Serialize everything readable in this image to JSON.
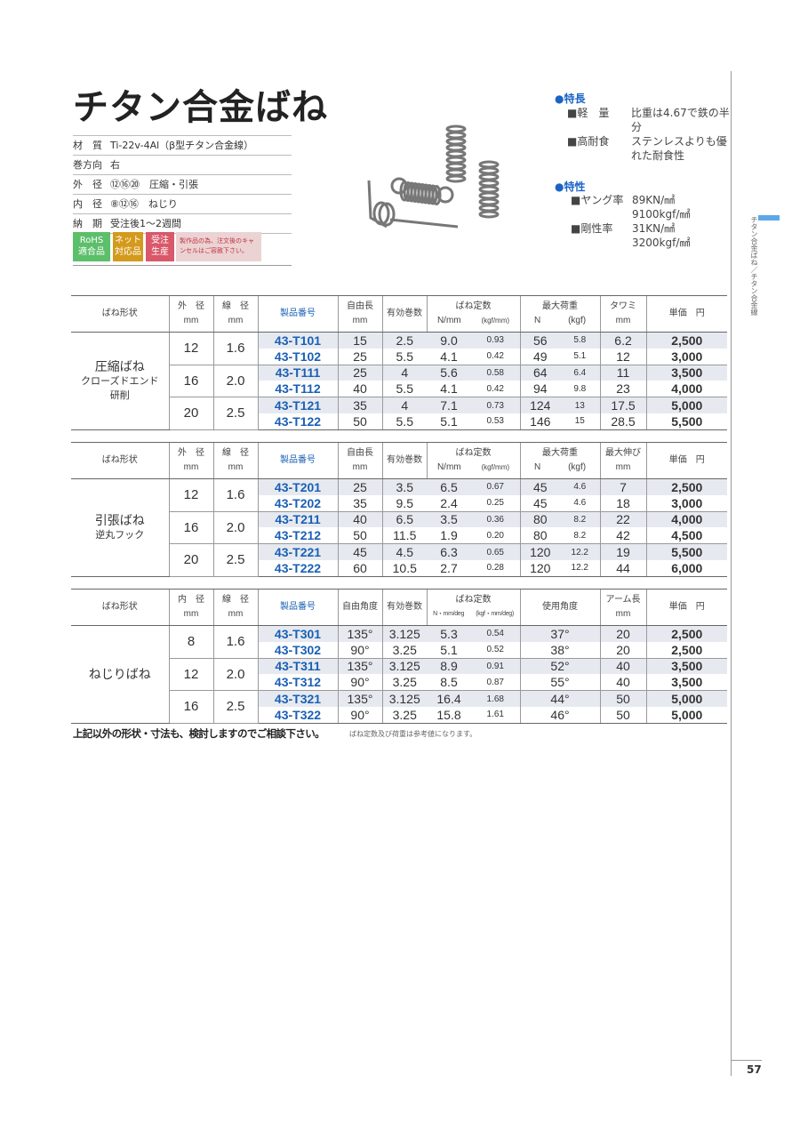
{
  "title": "チタン合金ばね",
  "specs": [
    {
      "key": "材　質",
      "value": "Ti-22v-4Al（β型チタン合金線）"
    },
    {
      "key": "巻方向",
      "value": "右"
    },
    {
      "key": "外　径",
      "value": "⑫⑯⑳　圧縮・引張"
    },
    {
      "key": "内　径",
      "value": "⑧⑫⑯　ねじり"
    },
    {
      "key": "納　期",
      "value": "受注後1〜2週間"
    }
  ],
  "badges": [
    {
      "label": "RoHS\n適合品",
      "color": "#5cbf6a"
    },
    {
      "label": "ネット\n対応品",
      "color": "#d49a1c"
    },
    {
      "label": "受注\n生産",
      "color": "#d9586a"
    }
  ],
  "notice": "製作品の為、注文後のキャンセルはご容赦下さい。",
  "features": {
    "heading1": "●特長",
    "items1": [
      {
        "k": "■軽　量",
        "v": "比重は4.67で鉄の半分"
      },
      {
        "k": "■高耐食",
        "v": "ステンレスよりも優れた耐食性"
      }
    ],
    "heading2": "●特性",
    "items2": [
      {
        "k": "■ヤング率",
        "v1": "89KN/㎟",
        "v2": "9100kgf/㎟"
      },
      {
        "k": "■剛性率",
        "v1": "31KN/㎟",
        "v2": "3200kgf/㎟"
      }
    ]
  },
  "side_tab": "チタン合金ばね／チタン合金線",
  "side_tab_color": "#5fa8e8",
  "page_number": "57",
  "tables": [
    {
      "headers": [
        "ばね形状",
        "外　径\nmm",
        "線　径\nmm",
        "製品番号",
        "自由長\nmm",
        "有効巻数",
        "ばね定数",
        "最大荷重",
        "タワミ\nmm",
        "単価　円"
      ],
      "sub1": [
        "N/mm",
        "(kgf/mm)"
      ],
      "sub2": [
        "N",
        "(kgf)"
      ],
      "shape": "圧縮ばね",
      "shape_sub": "クローズドエンド\n研削",
      "groups": [
        {
          "d": "12",
          "w": "1.6"
        },
        {
          "d": "16",
          "w": "2.0"
        },
        {
          "d": "20",
          "w": "2.5"
        }
      ],
      "rows": [
        [
          "43-T101",
          "15",
          "2.5",
          "9.0",
          "0.93",
          "56",
          "5.8",
          "6.2",
          "2,500"
        ],
        [
          "43-T102",
          "25",
          "5.5",
          "4.1",
          "0.42",
          "49",
          "5.1",
          "12",
          "3,000"
        ],
        [
          "43-T111",
          "25",
          "4",
          "5.6",
          "0.58",
          "64",
          "6.4",
          "11",
          "3,500"
        ],
        [
          "43-T112",
          "40",
          "5.5",
          "4.1",
          "0.42",
          "94",
          "9.8",
          "23",
          "4,000"
        ],
        [
          "43-T121",
          "35",
          "4",
          "7.1",
          "0.73",
          "124",
          "13",
          "17.5",
          "5,000"
        ],
        [
          "43-T122",
          "50",
          "5.5",
          "5.1",
          "0.53",
          "146",
          "15",
          "28.5",
          "5,500"
        ]
      ]
    },
    {
      "headers": [
        "ばね形状",
        "外　径\nmm",
        "線　径\nmm",
        "製品番号",
        "自由長\nmm",
        "有効巻数",
        "ばね定数",
        "最大荷重",
        "最大伸び\nmm",
        "単価　円"
      ],
      "sub1": [
        "N/mm",
        "(kgf/mm)"
      ],
      "sub2": [
        "N",
        "(kgf)"
      ],
      "shape": "引張ばね",
      "shape_sub": "逆丸フック",
      "groups": [
        {
          "d": "12",
          "w": "1.6"
        },
        {
          "d": "16",
          "w": "2.0"
        },
        {
          "d": "20",
          "w": "2.5"
        }
      ],
      "rows": [
        [
          "43-T201",
          "25",
          "3.5",
          "6.5",
          "0.67",
          "45",
          "4.6",
          "7",
          "2,500"
        ],
        [
          "43-T202",
          "35",
          "9.5",
          "2.4",
          "0.25",
          "45",
          "4.6",
          "18",
          "3,000"
        ],
        [
          "43-T211",
          "40",
          "6.5",
          "3.5",
          "0.36",
          "80",
          "8.2",
          "22",
          "4,000"
        ],
        [
          "43-T212",
          "50",
          "11.5",
          "1.9",
          "0.20",
          "80",
          "8.2",
          "42",
          "4,500"
        ],
        [
          "43-T221",
          "45",
          "4.5",
          "6.3",
          "0.65",
          "120",
          "12.2",
          "19",
          "5,500"
        ],
        [
          "43-T222",
          "60",
          "10.5",
          "2.7",
          "0.28",
          "120",
          "12.2",
          "44",
          "6,000"
        ]
      ]
    },
    {
      "headers": [
        "ばね形状",
        "内　径\nmm",
        "線　径\nmm",
        "製品番号",
        "自由角度",
        "有効巻数",
        "ばね定数",
        "使用角度",
        "アーム長\nmm",
        "単価　円"
      ],
      "sub1": [
        "N・mm/deg",
        "(kgf・mm/deg)"
      ],
      "shape": "ねじりばね",
      "shape_sub": "",
      "groups": [
        {
          "d": "8",
          "w": "1.6"
        },
        {
          "d": "12",
          "w": "2.0"
        },
        {
          "d": "16",
          "w": "2.5"
        }
      ],
      "rows": [
        [
          "43-T301",
          "135°",
          "3.125",
          "5.3",
          "0.54",
          "37°",
          "20",
          "2,500"
        ],
        [
          "43-T302",
          "90°",
          "3.25",
          "5.1",
          "0.52",
          "38°",
          "20",
          "2,500"
        ],
        [
          "43-T311",
          "135°",
          "3.125",
          "8.9",
          "0.91",
          "52°",
          "40",
          "3,500"
        ],
        [
          "43-T312",
          "90°",
          "3.25",
          "8.5",
          "0.87",
          "55°",
          "40",
          "3,500"
        ],
        [
          "43-T321",
          "135°",
          "3.125",
          "16.4",
          "1.68",
          "44°",
          "50",
          "5,000"
        ],
        [
          "43-T322",
          "90°",
          "3.25",
          "15.8",
          "1.61",
          "46°",
          "50",
          "5,000"
        ]
      ]
    }
  ],
  "footer_note": "上記以外の形状・寸法も、検討しますのでご相談下さい。",
  "footer_small": "ばね定数及び荷重は参考値になります。"
}
